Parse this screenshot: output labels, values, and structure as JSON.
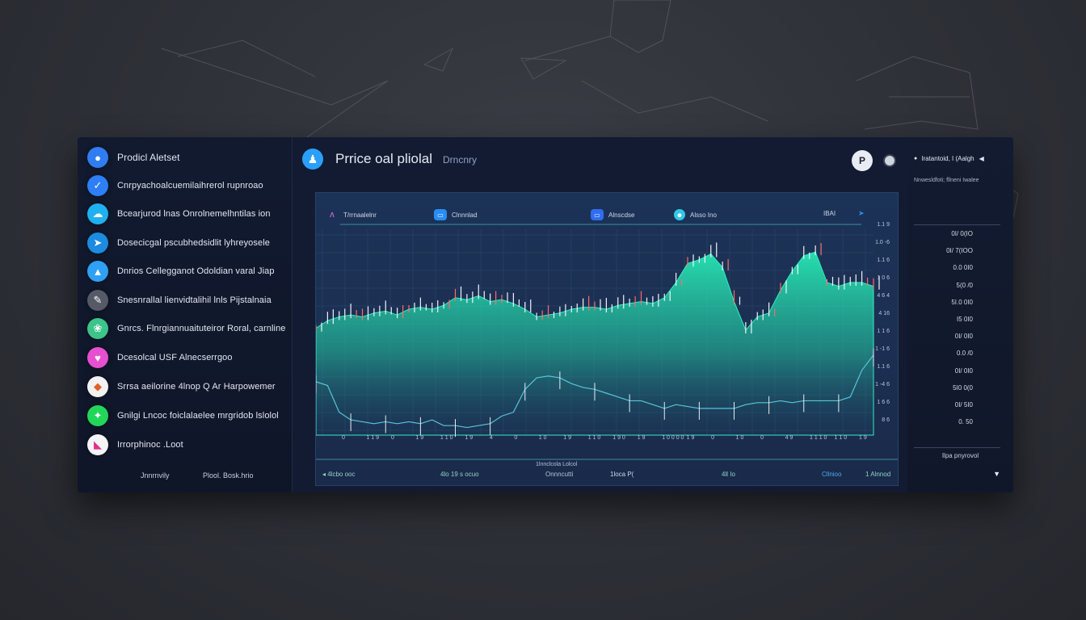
{
  "window": {
    "title": "Prrice oal pliolal",
    "subtitle": "Drncnry"
  },
  "sidebar": {
    "title": {
      "label": "Prodicl Aletset",
      "icon": "globe-icon",
      "color": "#2f7df0"
    },
    "items": [
      {
        "label": "Cnrpyachoalcuemilaihrerol rupnroao",
        "icon": "check-icon",
        "color": "#2d7ef7"
      },
      {
        "label": "Bcearjurod lnas Onrolnemelhntilas ion",
        "icon": "cloud-icon",
        "color": "#1fb0f0"
      },
      {
        "label": "Dosecicgal pscubhedsidlit lyhreyosele",
        "icon": "arrow-icon",
        "color": "#1c8be0"
      },
      {
        "label": "Dnrios Cellegganot Odoldian varal Jiap",
        "icon": "chart-icon",
        "color": "#2ea0f5"
      },
      {
        "label": "Snesnrallal lienvidtalihil lnls Pijstalnaia",
        "icon": "pen-icon",
        "color": "#555a66"
      },
      {
        "label": "Gnrcs. Flnrgiannuaituteiror Roral, carnline",
        "icon": "leaf-icon",
        "color": "#3cc48a"
      },
      {
        "label": "Dcesolcal USF Alnecserrgoo",
        "icon": "heart-icon",
        "color": "#e64fd0"
      },
      {
        "label": "Srrsa aeilorine 4lnop Q Ar Harpowemer",
        "icon": "fox-icon",
        "color": "#f2f2f2"
      },
      {
        "label": "Gnilgi Lncoc foiclalaelee mrgridob lslolol",
        "icon": "sparkle-icon",
        "color": "#22d65a"
      },
      {
        "label": "Irrorphinoc .Loot",
        "icon": "tag-icon",
        "color": "#f4f4f6"
      }
    ],
    "footer_left": "Jnnrnvily",
    "footer_right": "Plool. Bosk.hrio"
  },
  "chart_panel": {
    "legend": [
      {
        "label": "T/rrnaalelnr",
        "icon": "bolt-icon",
        "color": "#e86ad8"
      },
      {
        "label": "Clnnnlad",
        "icon": "message-icon",
        "color": "#2a8cf5"
      },
      {
        "label": "Alnscdse",
        "icon": "tv-icon",
        "color": "#2f6df0"
      },
      {
        "label": "Alsso Ino",
        "icon": "face-icon",
        "color": "#32c8e8"
      },
      {
        "label": "IBAI",
        "icon": "",
        "color": "#2a8cf5"
      }
    ],
    "y_ticks": [
      "1.1 9",
      "1.0 -6",
      "1.1 6",
      "1 0 6",
      "4 6 4",
      "4 16",
      "1 1 6",
      "1 -1 6",
      "1.1 6",
      "1 -4 6",
      "1 6 6",
      "8 6"
    ],
    "x_ticks": [
      "0",
      "1 1 9",
      "0",
      "1 9",
      "1 1 0",
      "1 9",
      "4",
      "0",
      "1 0",
      "1 9",
      "1 1 0",
      "1 9 0",
      "1 9",
      "1 0 0 0 0",
      "1 9",
      "0",
      "1 0",
      "0",
      "4 9",
      "1 1 1 0",
      "1 1 0",
      "1 9"
    ],
    "bottom_labels": [
      {
        "label": "◂  4lcbo ooc",
        "color": "#8fd4c8"
      },
      {
        "label": "4lo 19 s  ocuo",
        "color": "#8fd4c8"
      },
      {
        "label": "Onnncutti",
        "color": "#b7c1d4"
      },
      {
        "label": "1loca P(",
        "color": "#d0d6e4"
      },
      {
        "label": "4ll  Io",
        "color": "#8fd4c8"
      },
      {
        "label": "Cllnioo",
        "color": "#4fa8f0"
      },
      {
        "label": "1  Alnnod",
        "color": "#8fd4c8"
      }
    ],
    "timeline_label": "1lnnclcola Lolcol",
    "series_colors": {
      "area": "#26e0b0",
      "line": "#57c6d9",
      "candle": "#f2f4f8"
    }
  },
  "chart_data": {
    "type": "area",
    "x": [
      0,
      1,
      2,
      3,
      4,
      5,
      6,
      7,
      8,
      9,
      10,
      11,
      12,
      13,
      14,
      15,
      16,
      17,
      18,
      19,
      20,
      21,
      22,
      23,
      24,
      25,
      26,
      27,
      28,
      29,
      30,
      31,
      32,
      33,
      34,
      35,
      36,
      37,
      38,
      39,
      40,
      41,
      42,
      43,
      44,
      45,
      46,
      47,
      48
    ],
    "series": [
      {
        "values": [
          56,
          60,
          62,
          63,
          62,
          64,
          65,
          63,
          66,
          67,
          66,
          68,
          72,
          71,
          73,
          70,
          71,
          69,
          66,
          62,
          63,
          64,
          66,
          67,
          67,
          66,
          68,
          69,
          70,
          69,
          72,
          80,
          90,
          92,
          95,
          88,
          70,
          55,
          62,
          64,
          76,
          86,
          94,
          96,
          80,
          78,
          80,
          80,
          78
        ]
      },
      {
        "values": [
          28,
          26,
          12,
          8,
          7,
          6,
          7,
          6,
          7,
          6,
          8,
          5,
          5,
          4,
          5,
          6,
          10,
          12,
          24,
          30,
          31,
          30,
          27,
          25,
          24,
          22,
          20,
          18,
          18,
          16,
          14,
          16,
          15,
          14,
          14,
          14,
          14,
          16,
          17,
          17,
          18,
          17,
          18,
          18,
          18,
          18,
          20,
          34,
          42
        ]
      }
    ],
    "ylim": [
      0,
      110
    ]
  },
  "right_panel": {
    "header": "Iratantoid, I (Aalgh",
    "subheader": "Nnwesldfoti; fllneni Iwalee",
    "values": [
      "0I/ 0(IO",
      "0I/ 7(IOO",
      "0.0 0I0",
      "5(0 /0",
      "5I.0 0I0",
      "I5 0I0",
      "0I/ 0I0",
      "0.0 /0",
      "0I/ 0I0",
      "5I0 0(0",
      "0I/ 5I0",
      "0. 50"
    ],
    "footer": "Ilpa pnyrovol"
  }
}
